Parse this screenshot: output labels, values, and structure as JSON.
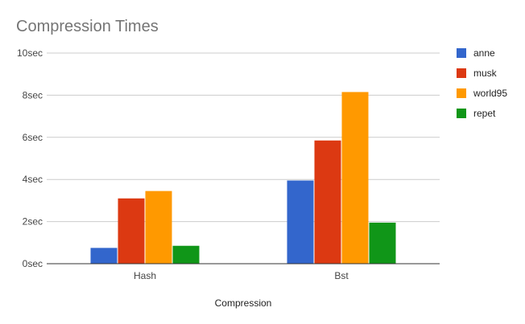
{
  "chart_data": {
    "type": "bar",
    "title": "Compression Times",
    "xlabel": "Compression",
    "ylabel": "",
    "categories": [
      "Hash",
      "Bst"
    ],
    "series": [
      {
        "name": "anne",
        "color": "#3366cc",
        "values": [
          0.75,
          3.95
        ]
      },
      {
        "name": "musk",
        "color": "#dc3912",
        "values": [
          3.1,
          5.85
        ]
      },
      {
        "name": "world95",
        "color": "#ff9900",
        "values": [
          3.45,
          8.15
        ]
      },
      {
        "name": "repet",
        "color": "#109618",
        "values": [
          0.85,
          1.95
        ]
      }
    ],
    "ylim": [
      0,
      10
    ],
    "yticks": [
      "0sec",
      "2sec",
      "4sec",
      "6sec",
      "8sec",
      "10sec"
    ],
    "ytick_values": [
      0,
      2,
      4,
      6,
      8,
      10
    ],
    "grid": true,
    "legend_position": "right"
  }
}
